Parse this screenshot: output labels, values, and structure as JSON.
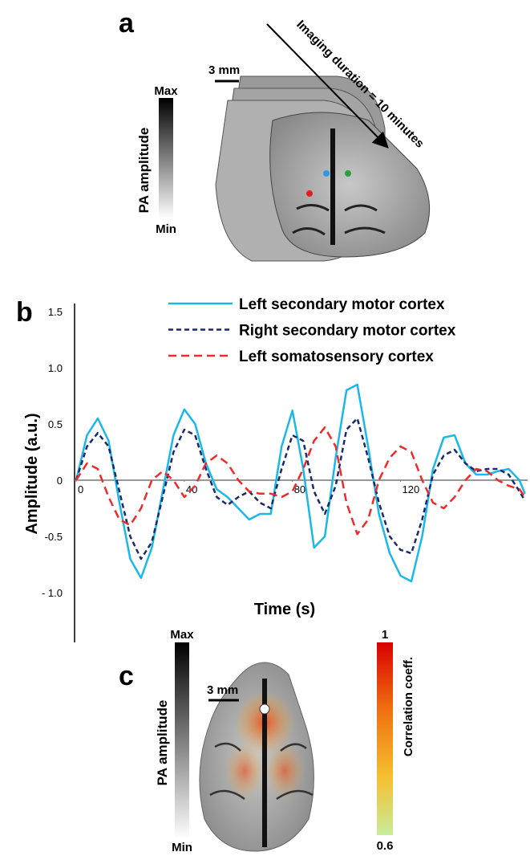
{
  "panel_a": {
    "label": "a",
    "scale_bar": "3 mm",
    "arrow_text": "Imaging duration = 10 minutes",
    "colorbar": {
      "title": "PA amplitude",
      "max_label": "Max",
      "min_label": "Min"
    }
  },
  "chart_data": {
    "type": "line",
    "label": "b",
    "xlabel": "Time (s)",
    "ylabel": "Amplitude (a.u.)",
    "xlim": [
      0,
      167
    ],
    "ylim": [
      -1.4,
      1.6
    ],
    "xticks": [
      0,
      40,
      80,
      120
    ],
    "yticks": [
      {
        "value": -1.0,
        "label": "- 1.0"
      },
      -0.5,
      0,
      0.5,
      {
        "value": 1.0,
        "label": "1.0"
      },
      1.5
    ],
    "x": [
      0,
      4,
      8,
      12,
      16,
      20,
      24,
      28,
      32,
      36,
      40,
      44,
      48,
      52,
      56,
      60,
      64,
      68,
      72,
      76,
      80,
      84,
      88,
      92,
      96,
      100,
      104,
      108,
      112,
      116,
      120,
      124,
      128,
      132,
      136,
      140,
      144,
      148,
      152,
      156,
      160,
      164,
      166
    ],
    "series": [
      {
        "name": "Left secondary motor cortex",
        "color": "#1ab8ea",
        "dash": "solid",
        "values": [
          0,
          0.4,
          0.55,
          0.35,
          -0.2,
          -0.7,
          -0.87,
          -0.6,
          -0.1,
          0.4,
          0.63,
          0.5,
          0.15,
          -0.08,
          -0.15,
          -0.25,
          -0.35,
          -0.3,
          -0.3,
          0.3,
          0.62,
          0.1,
          -0.6,
          -0.5,
          0.2,
          0.8,
          0.85,
          0.3,
          -0.3,
          -0.65,
          -0.85,
          -0.9,
          -0.5,
          0.1,
          0.38,
          0.4,
          0.15,
          0.05,
          0.05,
          0.08,
          0.1,
          0.0,
          -0.12
        ]
      },
      {
        "name": "Right secondary motor cortex",
        "color": "#1a2a6c",
        "dash": "short",
        "values": [
          0,
          0.3,
          0.42,
          0.3,
          -0.1,
          -0.5,
          -0.7,
          -0.55,
          -0.15,
          0.25,
          0.45,
          0.4,
          0.1,
          -0.15,
          -0.22,
          -0.15,
          -0.1,
          -0.2,
          -0.25,
          0.1,
          0.4,
          0.35,
          -0.1,
          -0.3,
          -0.05,
          0.45,
          0.55,
          0.2,
          -0.2,
          -0.5,
          -0.62,
          -0.65,
          -0.35,
          0.05,
          0.22,
          0.27,
          0.15,
          0.08,
          0.1,
          0.1,
          0.05,
          -0.1,
          -0.18
        ]
      },
      {
        "name": "Left somatosensory cortex",
        "color": "#ee2a2a",
        "dash": "long",
        "values": [
          0,
          0.15,
          0.1,
          -0.15,
          -0.35,
          -0.4,
          -0.25,
          0.0,
          0.08,
          0.0,
          -0.15,
          -0.05,
          0.15,
          0.22,
          0.15,
          0.0,
          -0.1,
          -0.12,
          -0.12,
          -0.15,
          -0.1,
          0.1,
          0.35,
          0.47,
          0.3,
          -0.2,
          -0.48,
          -0.35,
          0.0,
          0.2,
          0.3,
          0.25,
          0.0,
          -0.2,
          -0.25,
          -0.15,
          0.0,
          0.1,
          0.08,
          0.0,
          -0.05,
          -0.08,
          -0.15
        ]
      }
    ]
  },
  "panel_c": {
    "label": "c",
    "scale_bar": "3 mm",
    "colorbar": {
      "title": "PA amplitude",
      "max_label": "Max",
      "min_label": "Min"
    },
    "corr_colorbar": {
      "title": "Correlation coeff.",
      "max_label": "1",
      "min_label": "0.6"
    }
  }
}
